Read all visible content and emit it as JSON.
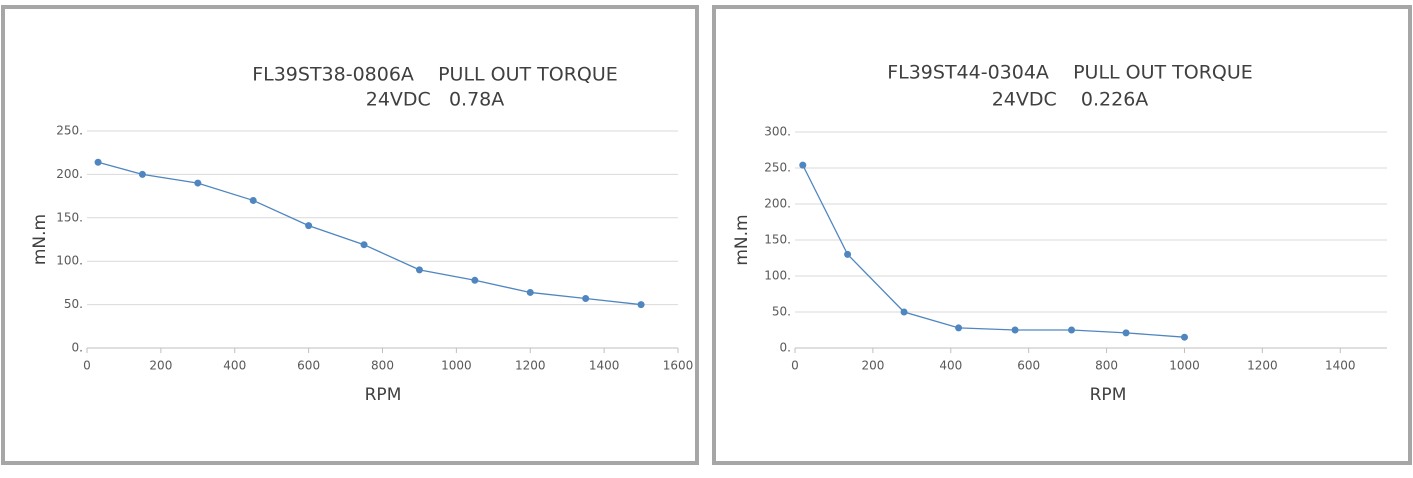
{
  "chart_data": [
    {
      "type": "line",
      "title": "FL39ST38-0806A    PULL OUT TORQUE",
      "subtitle": "24VDC   0.78A",
      "x_label": "RPM",
      "y_label": "mN.m",
      "x": [
        30,
        150,
        300,
        450,
        600,
        750,
        900,
        1050,
        1200,
        1350,
        1500
      ],
      "series": [
        {
          "color": "#4f86c0",
          "values": [
            214,
            200,
            190,
            170,
            141,
            119,
            90,
            78,
            64,
            57,
            50
          ]
        }
      ],
      "xlim": [
        0,
        1600
      ],
      "xticks": [
        0,
        200,
        400,
        600,
        800,
        1000,
        1200,
        1400,
        1600
      ],
      "ylim": [
        0,
        250
      ],
      "yticks": [
        {
          "value": 0,
          "label": "0."
        },
        {
          "value": 50,
          "label": "50."
        },
        {
          "value": 100,
          "label": "100."
        },
        {
          "value": 150,
          "label": "150."
        },
        {
          "value": 200,
          "label": "200."
        },
        {
          "value": 250,
          "label": "250."
        }
      ],
      "grid": true
    },
    {
      "type": "line",
      "title": "FL39ST44-0304A    PULL OUT TORQUE",
      "subtitle": "24VDC    0.226A",
      "x_label": "RPM",
      "y_label": "mN.m",
      "x": [
        20,
        135,
        280,
        420,
        565,
        710,
        850,
        1000
      ],
      "series": [
        {
          "color": "#4f86c0",
          "values": [
            254,
            130,
            50,
            28,
            25,
            25,
            21,
            15
          ]
        }
      ],
      "xlim": [
        0,
        1520
      ],
      "xticks": [
        0,
        200,
        400,
        600,
        800,
        1000,
        1200,
        1400
      ],
      "ylim": [
        0,
        300
      ],
      "yticks": [
        {
          "value": 0,
          "label": "0."
        },
        {
          "value": 50,
          "label": "50."
        },
        {
          "value": 100,
          "label": "100."
        },
        {
          "value": 150,
          "label": "150."
        },
        {
          "value": 200,
          "label": "200."
        },
        {
          "value": 250,
          "label": "250."
        },
        {
          "value": 300,
          "label": "300."
        }
      ],
      "grid": true
    }
  ]
}
